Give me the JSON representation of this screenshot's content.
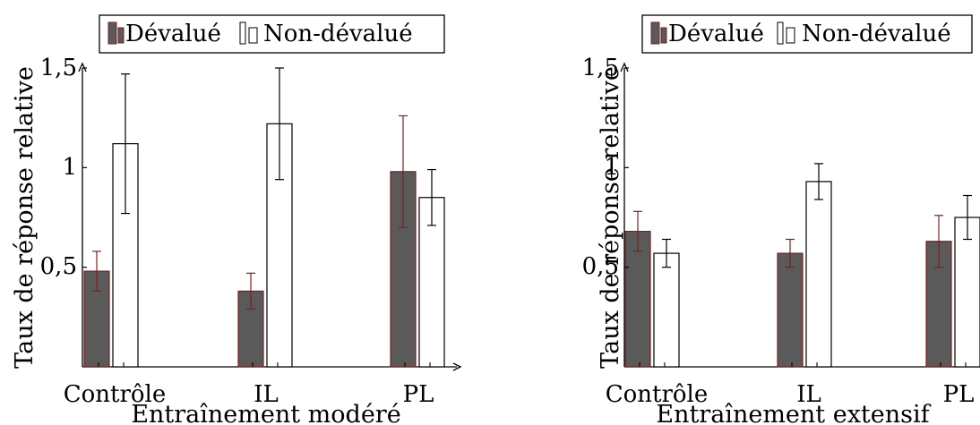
{
  "colors": {
    "devalue_fill": "#5a5a5a",
    "devalue_stroke": "#7a2020",
    "non_devalue_fill": "#ffffff",
    "non_devalue_stroke": "#000000",
    "axis": "#000000"
  },
  "chart_data": [
    {
      "type": "bar",
      "title": "",
      "xlabel": "Entraînement modéré",
      "ylabel": "Taux de réponse relative",
      "categories": [
        "Contrôle",
        "IL",
        "PL"
      ],
      "ylim": [
        0,
        1.5
      ],
      "yticks": [
        "0,5",
        "1",
        "1,5"
      ],
      "ytick_values": [
        0.5,
        1,
        1.5
      ],
      "grid": false,
      "legend_position": "top",
      "series": [
        {
          "name": "Dévalué",
          "values": [
            0.48,
            0.38,
            0.98
          ],
          "error": [
            0.1,
            0.09,
            0.28
          ]
        },
        {
          "name": "Non-dévalué",
          "values": [
            1.12,
            1.22,
            0.85
          ],
          "error": [
            0.35,
            0.28,
            0.14
          ]
        }
      ]
    },
    {
      "type": "bar",
      "title": "",
      "xlabel": "Entraînement extensif",
      "ylabel": "Taux de réponse relative",
      "categories": [
        "Contrôle",
        "IL",
        "PL"
      ],
      "ylim": [
        0,
        1.5
      ],
      "yticks": [
        "0,5",
        "1",
        "1,5"
      ],
      "ytick_values": [
        0.5,
        1,
        1.5
      ],
      "grid": false,
      "legend_position": "top",
      "series": [
        {
          "name": "Dévalué",
          "values": [
            0.68,
            0.57,
            0.63
          ],
          "error": [
            0.1,
            0.07,
            0.13
          ]
        },
        {
          "name": "Non-dévalué",
          "values": [
            0.57,
            0.93,
            0.75
          ],
          "error": [
            0.07,
            0.09,
            0.11
          ]
        }
      ]
    }
  ]
}
